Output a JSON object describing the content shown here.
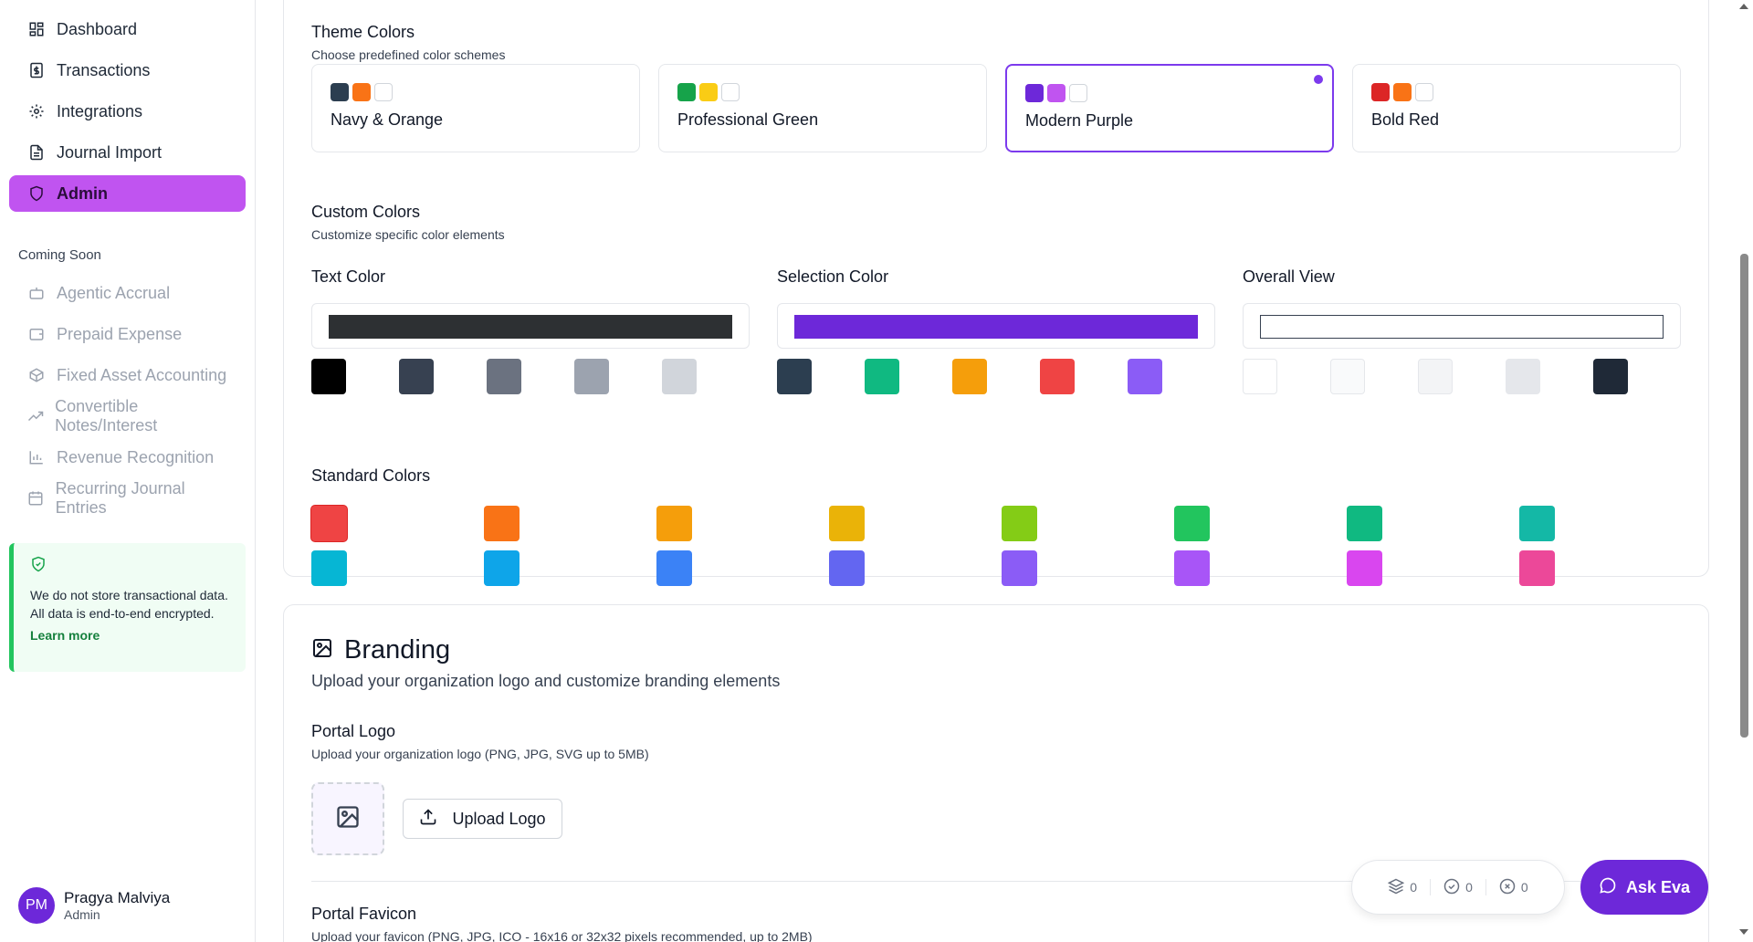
{
  "sidebar": {
    "nav": [
      {
        "label": "Dashboard",
        "icon": "dashboard-icon"
      },
      {
        "label": "Transactions",
        "icon": "dollar-icon"
      },
      {
        "label": "Integrations",
        "icon": "gear-icon"
      },
      {
        "label": "Journal Import",
        "icon": "file-icon"
      },
      {
        "label": "Admin",
        "icon": "shield-icon",
        "active": true
      }
    ],
    "coming_soon_label": "Coming Soon",
    "coming_soon": [
      {
        "label": "Agentic Accrual",
        "icon": "bot-icon"
      },
      {
        "label": "Prepaid Expense",
        "icon": "wallet-icon"
      },
      {
        "label": "Fixed Asset Accounting",
        "icon": "box-icon"
      },
      {
        "label": "Convertible Notes/Interest",
        "icon": "trending-up-icon"
      },
      {
        "label": "Revenue Recognition",
        "icon": "bar-chart-icon"
      },
      {
        "label": "Recurring Journal Entries",
        "icon": "calendar-icon"
      }
    ],
    "notice": {
      "text": "We do not store transactional data. All data is end-to-end encrypted.",
      "link": "Learn more"
    },
    "user": {
      "initials": "PM",
      "name": "Pragya Malviya",
      "role": "Admin"
    }
  },
  "theme": {
    "title": "Theme Colors",
    "desc": "Choose predefined color schemes",
    "options": [
      {
        "name": "Navy & Orange",
        "colors": [
          "#2c3e50",
          "#f97316",
          "#ffffff"
        ]
      },
      {
        "name": "Professional Green",
        "colors": [
          "#16a34a",
          "#facc15",
          "#ffffff"
        ]
      },
      {
        "name": "Modern Purple",
        "colors": [
          "#6d28d9",
          "#c054f0",
          "#ffffff"
        ],
        "selected": true
      },
      {
        "name": "Bold Red",
        "colors": [
          "#dc2626",
          "#f97316",
          "#ffffff"
        ]
      }
    ]
  },
  "custom": {
    "title": "Custom Colors",
    "desc": "Customize specific color elements",
    "text_color": {
      "label": "Text Color",
      "value": "#2d3033",
      "swatches": [
        "#000000",
        "#374151",
        "#6b7280",
        "#9ca3af",
        "#d1d5db"
      ]
    },
    "selection_color": {
      "label": "Selection Color",
      "value": "#6d28d9",
      "swatches": [
        "#2c3e50",
        "#10b981",
        "#f59e0b",
        "#ef4444",
        "#8b5cf6"
      ]
    },
    "overall_view": {
      "label": "Overall View",
      "value": "#ffffff",
      "swatches": [
        "#ffffff",
        "#f9fafb",
        "#f3f4f6",
        "#e5e7eb",
        "#1f2937"
      ]
    }
  },
  "standard": {
    "title": "Standard Colors",
    "colors": [
      "#ef4444",
      "#f97316",
      "#f59e0b",
      "#eab308",
      "#84cc16",
      "#22c55e",
      "#10b981",
      "#14b8a6",
      "#06b6d4",
      "#0ea5e9",
      "#3b82f6",
      "#6366f1",
      "#8b5cf6",
      "#a855f7",
      "#d946ef",
      "#ec4899"
    ]
  },
  "branding": {
    "title": "Branding",
    "desc": "Upload your organization logo and customize branding elements",
    "logo_title": "Portal Logo",
    "logo_desc": "Upload your organization logo (PNG, JPG, SVG up to 5MB)",
    "upload_label": "Upload Logo",
    "favicon_title": "Portal Favicon",
    "favicon_desc": "Upload your favicon (PNG, JPG, ICO - 16x16 or 32x32 pixels recommended, up to 2MB)"
  },
  "counters": {
    "layers": "0",
    "done": "0",
    "failed": "0"
  },
  "ask": {
    "label": "Ask Eva"
  }
}
